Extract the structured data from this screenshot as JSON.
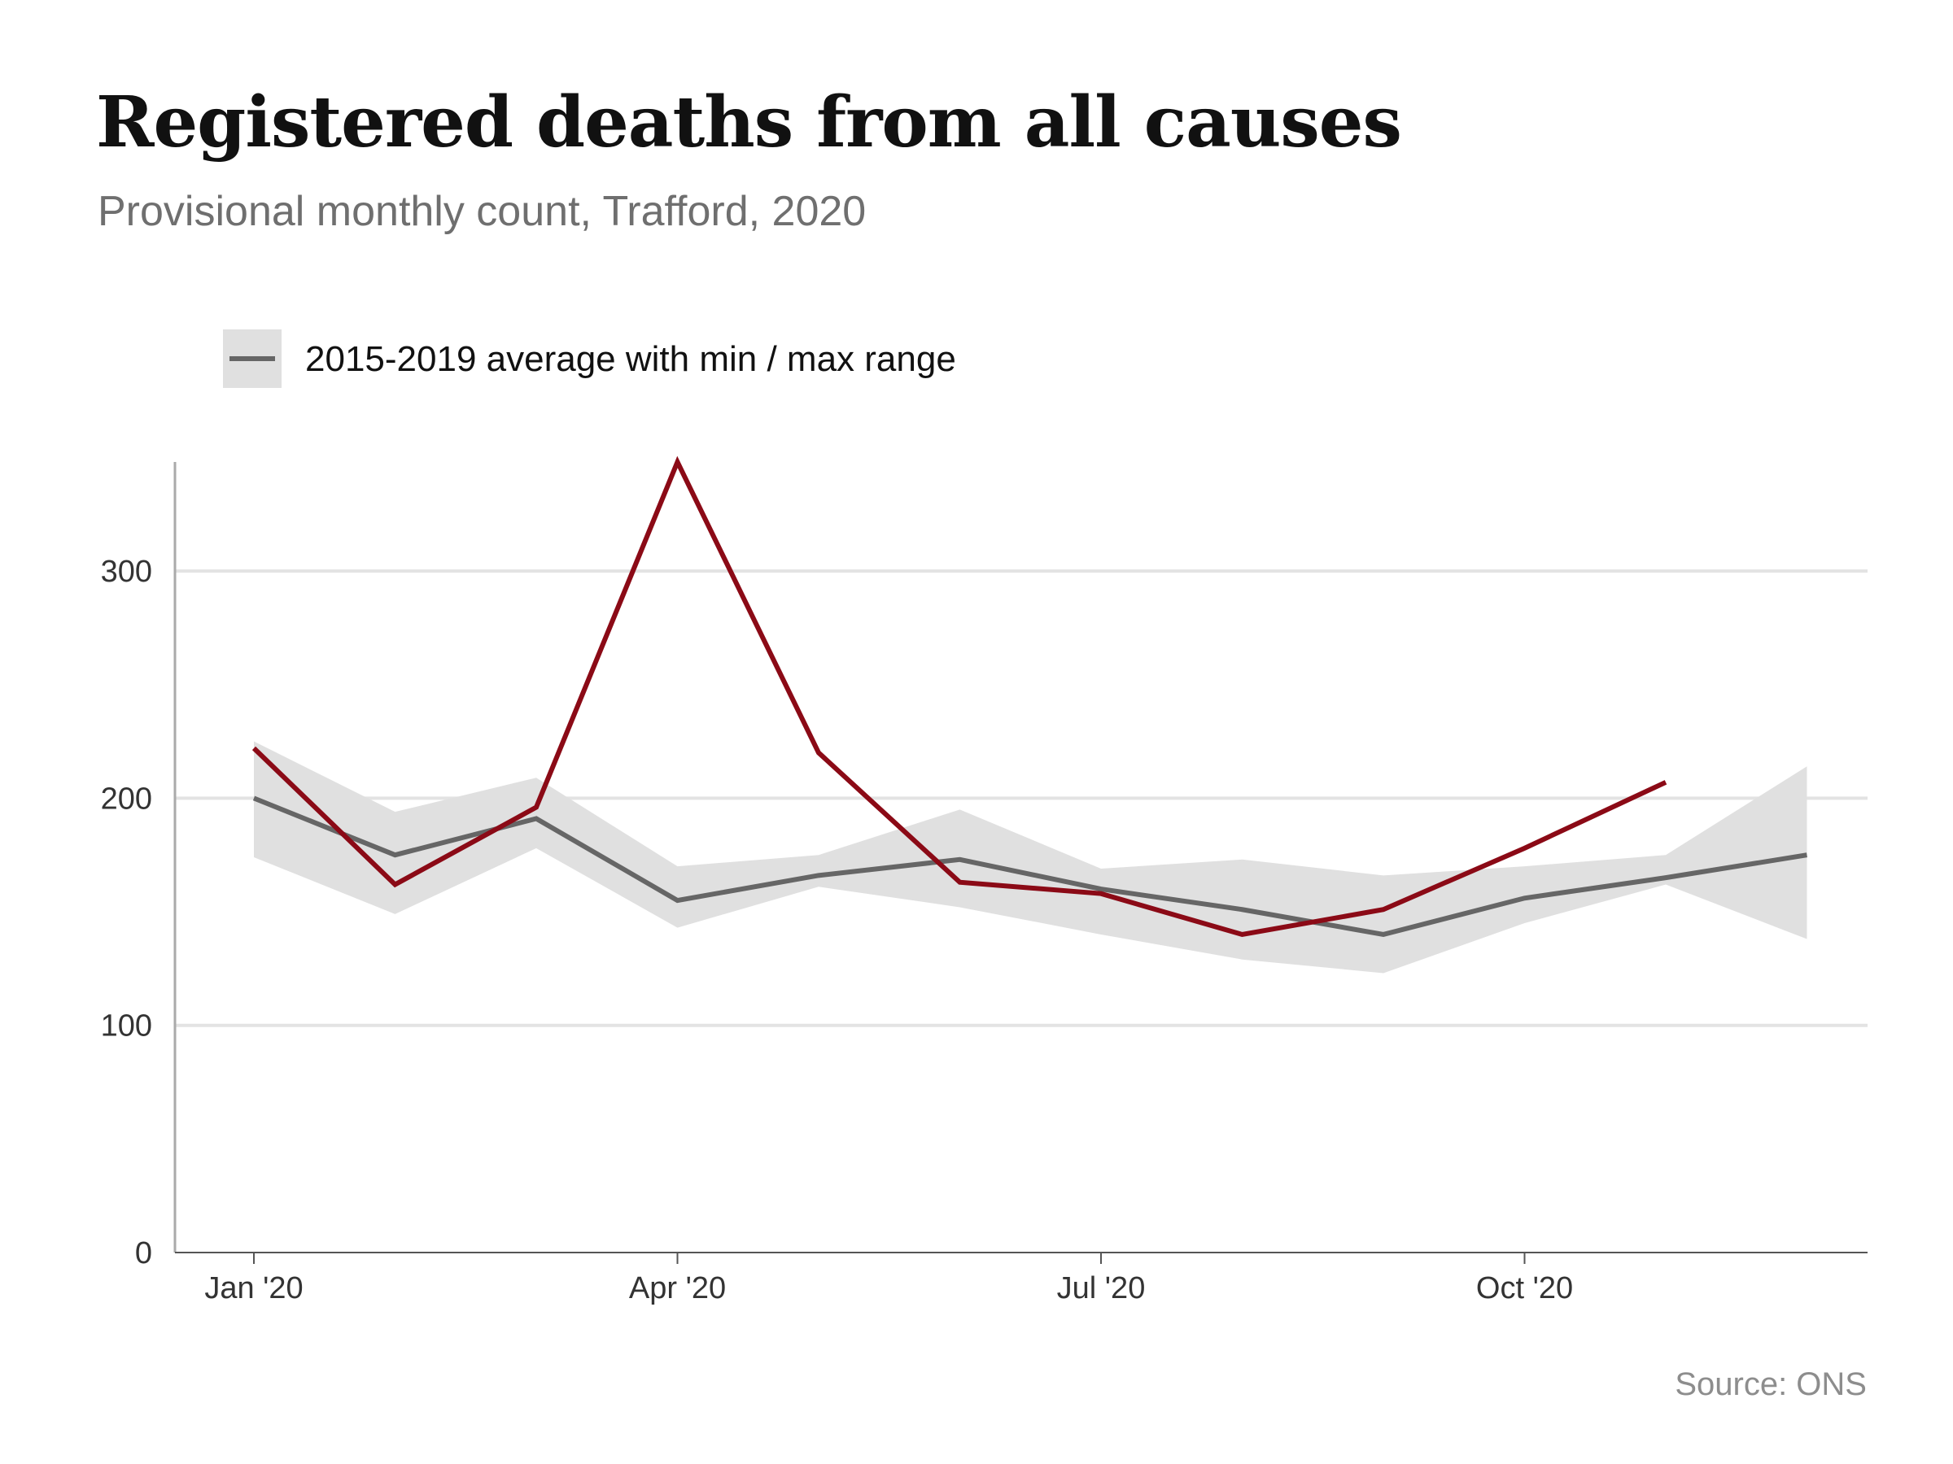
{
  "title": "Registered deaths from all causes",
  "subtitle": "Provisional monthly count, Trafford, 2020",
  "source": "Source: ONS",
  "colors": {
    "current": "#8b0a16",
    "average": "#666666",
    "range": "#e0e0e0",
    "grid": "#e3e3e3",
    "axis": "#aaaaaa"
  },
  "chart_data": {
    "type": "line",
    "title": "Registered deaths from all causes",
    "subtitle": "Provisional monthly count, Trafford, 2020",
    "x": [
      "2020-01",
      "2020-02",
      "2020-03",
      "2020-04",
      "2020-05",
      "2020-06",
      "2020-07",
      "2020-08",
      "2020-09",
      "2020-10",
      "2020-11",
      "2020-12"
    ],
    "x_tick_labels": [
      "Jan '20",
      "Apr '20",
      "Jul '20",
      "Oct '20"
    ],
    "x_tick_positions": [
      "2020-01",
      "2020-04",
      "2020-07",
      "2020-10"
    ],
    "y_ticks": [
      0,
      100,
      200,
      300
    ],
    "ylim": [
      0,
      348
    ],
    "grid": true,
    "legend_position": "top-left",
    "legend_label": "2015-2019 average with min / max range",
    "series": [
      {
        "key": "current",
        "values": [
          222,
          162,
          196,
          348,
          220,
          163,
          158,
          140,
          151,
          178,
          207,
          null
        ]
      },
      {
        "key": "average",
        "name": "2015-2019 average with min / max range",
        "values": [
          200,
          175,
          191,
          155,
          166,
          173,
          160,
          151,
          140,
          156,
          165,
          175
        ],
        "min": [
          174,
          149,
          178,
          143,
          161,
          152,
          140,
          129,
          123,
          145,
          162,
          138
        ],
        "max": [
          225,
          194,
          209,
          170,
          175,
          195,
          169,
          173,
          166,
          170,
          175,
          214
        ]
      }
    ]
  }
}
